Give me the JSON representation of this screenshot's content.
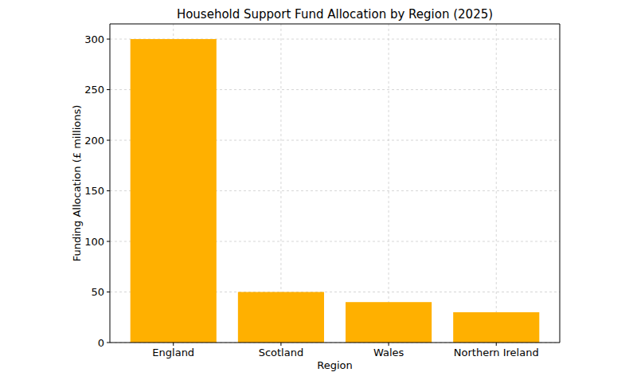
{
  "chart_data": {
    "type": "bar",
    "title": "Household Support Fund Allocation by Region (2025)",
    "x_label": "Region",
    "y_label": "Funding Allocation (£ millions)",
    "categories": [
      "England",
      "Scotland",
      "Wales",
      "Northern Ireland"
    ],
    "values": [
      300,
      50,
      40,
      30
    ],
    "color": "#ffb000",
    "ylim": [
      0,
      315
    ],
    "yticks": [
      0,
      50,
      100,
      150,
      200,
      250,
      300
    ],
    "grid": true
  }
}
